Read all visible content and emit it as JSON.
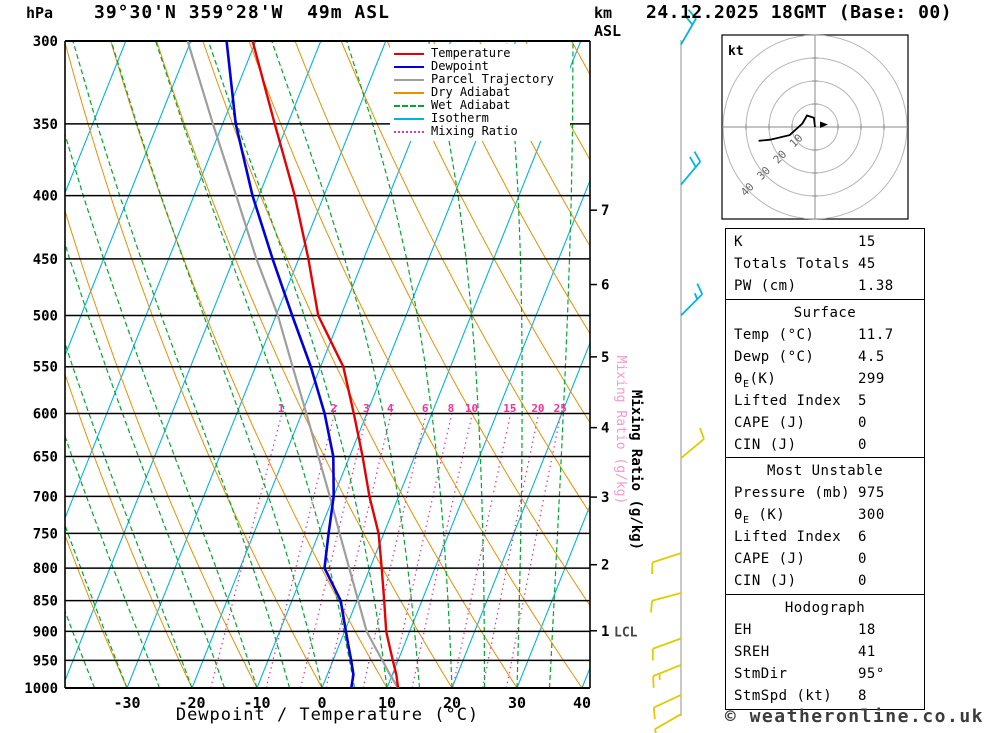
{
  "page": {
    "title": "39°30'N 359°28'W  49m ASL",
    "datetime": "24.12.2025 18GMT (Base: 00)",
    "copyright": "© weatheronline.co.uk",
    "pressure_unit": "hPa",
    "km_label_top": "km",
    "km_label_bottom": "ASL"
  },
  "chart_data": {
    "type": "skewt-sounding",
    "title": "39°30'N 359°28'W  49m ASL",
    "base_time": "24.12.2025 18GMT (Base: 00)",
    "xlabel": "Dewpoint / Temperature (°C)",
    "pressure_axis": {
      "unit": "hPa",
      "ticks": [
        300,
        350,
        400,
        450,
        500,
        550,
        600,
        650,
        700,
        750,
        800,
        850,
        900,
        950,
        1000
      ],
      "min": 300,
      "max": 1000
    },
    "temp_axis": {
      "ticks": [
        -30,
        -20,
        -10,
        0,
        10,
        20,
        30,
        40
      ],
      "min": -30,
      "max": 40
    },
    "km_axis": {
      "unit": "km ASL",
      "ticks": [
        {
          "km": 1,
          "p": 899
        },
        {
          "km": 2,
          "p": 795
        },
        {
          "km": 3,
          "p": 701
        },
        {
          "km": 4,
          "p": 616
        },
        {
          "km": 5,
          "p": 540
        },
        {
          "km": 6,
          "p": 472
        },
        {
          "km": 7,
          "p": 411
        }
      ],
      "lcl": {
        "label": "LCL",
        "p": 900
      }
    },
    "mixing_ratio": {
      "label": "Mixing Ratio (g/kg)",
      "values": [
        1,
        2,
        3,
        4,
        6,
        8,
        10,
        15,
        20,
        25
      ]
    },
    "sounding": {
      "pressure": [
        1000,
        975,
        950,
        925,
        900,
        850,
        800,
        750,
        700,
        650,
        600,
        550,
        500,
        450,
        400,
        350,
        300
      ],
      "temperature": [
        11.7,
        10.6,
        9.2,
        7.8,
        6.4,
        4.2,
        1.8,
        -0.8,
        -4.5,
        -8.0,
        -12.0,
        -16.5,
        -23.5,
        -28.5,
        -34.5,
        -42.0,
        -50.5
      ],
      "dewpoint": [
        4.5,
        4.0,
        2.8,
        1.5,
        0.2,
        -2.5,
        -7.0,
        -8.5,
        -10.0,
        -12.5,
        -16.5,
        -21.5,
        -27.5,
        -34.0,
        -41.0,
        -48.0,
        -54.5
      ],
      "parcel": [
        11.7,
        9.6,
        7.6,
        5.5,
        3.4,
        0.2,
        -3.2,
        -6.8,
        -10.6,
        -14.8,
        -19.3,
        -24.3,
        -29.7,
        -36.5,
        -43.5,
        -51.5,
        -60.5
      ]
    },
    "wind_barbs": [
      {
        "p": 302,
        "color": "#00b4e6",
        "angle": -60,
        "feathers": 2,
        "half": false
      },
      {
        "p": 392,
        "color": "#00b4e6",
        "angle": -50,
        "feathers": 2,
        "half": false
      },
      {
        "p": 500,
        "color": "#00b4e6",
        "angle": -45,
        "feathers": 1,
        "half": true
      },
      {
        "p": 652,
        "color": "#e0cc00",
        "angle": -40,
        "feathers": 1,
        "half": false
      },
      {
        "p": 778,
        "color": "#e0cc00",
        "angle": 162,
        "feathers": 1,
        "half": false
      },
      {
        "p": 838,
        "color": "#e0cc00",
        "angle": 165,
        "feathers": 1,
        "half": false
      },
      {
        "p": 912,
        "color": "#e0cc00",
        "angle": 160,
        "feathers": 1,
        "half": false
      },
      {
        "p": 958,
        "color": "#e0cc00",
        "angle": 158,
        "feathers": 1,
        "half": true
      },
      {
        "p": 1013,
        "color": "#e0cc00",
        "angle": 155,
        "feathers": 1,
        "half": false
      },
      {
        "p": 1050,
        "color": "#e0cc00",
        "angle": 150,
        "feathers": 1,
        "half": false
      }
    ],
    "legend": [
      {
        "label": "Temperature",
        "color": "#e60000",
        "style": "solid"
      },
      {
        "label": "Dewpoint",
        "color": "#0000dd",
        "style": "solid"
      },
      {
        "label": "Parcel Trajectory",
        "color": "#9e9e9e",
        "style": "solid"
      },
      {
        "label": "Dry Adiabat",
        "color": "#ef8e00",
        "style": "solid"
      },
      {
        "label": "Wet Adiabat",
        "color": "#00a830",
        "style": "dashed"
      },
      {
        "label": "Isotherm",
        "color": "#00b4e6",
        "style": "solid"
      },
      {
        "label": "Mixing Ratio",
        "color": "#ee3399",
        "style": "dotted"
      }
    ],
    "hodograph": {
      "unit": "kt",
      "rings": [
        10,
        20,
        30,
        40
      ],
      "trace_kt": [
        [
          0,
          0
        ],
        [
          -0.5,
          -4
        ],
        [
          -3.5,
          -5
        ],
        [
          -5.5,
          -1.5
        ],
        [
          -11,
          3.5
        ],
        [
          -19.5,
          5.5
        ],
        [
          -24.5,
          6
        ]
      ]
    },
    "colors": {
      "temperature": "#e60000",
      "dewpoint": "#0000dd",
      "parcel": "#9e9e9e",
      "dry_adiabat": "#ef8e00",
      "wet_adiabat": "#00a830",
      "isotherm": "#00b4e6",
      "mixing_ratio": "#ee3399"
    }
  },
  "stats": {
    "sections": [
      {
        "title": "",
        "rows": [
          [
            "K",
            "15"
          ],
          [
            "Totals Totals",
            "45"
          ],
          [
            "PW (cm)",
            "1.38"
          ]
        ]
      },
      {
        "title": "Surface",
        "rows": [
          [
            "Temp (°C)",
            "11.7"
          ],
          [
            "Dewp (°C)",
            "4.5"
          ],
          [
            "θE(K)",
            "299"
          ],
          [
            "Lifted Index",
            "5"
          ],
          [
            "CAPE (J)",
            "0"
          ],
          [
            "CIN (J)",
            "0"
          ]
        ]
      },
      {
        "title": "Most Unstable",
        "rows": [
          [
            "Pressure (mb)",
            "975"
          ],
          [
            "θE (K)",
            "300"
          ],
          [
            "Lifted Index",
            "6"
          ],
          [
            "CAPE (J)",
            "0"
          ],
          [
            "CIN (J)",
            "0"
          ]
        ]
      },
      {
        "title": "Hodograph",
        "rows": [
          [
            "EH",
            "18"
          ],
          [
            "SREH",
            "41"
          ],
          [
            "StmDir",
            "95°"
          ],
          [
            "StmSpd (kt)",
            "8"
          ]
        ]
      }
    ]
  }
}
